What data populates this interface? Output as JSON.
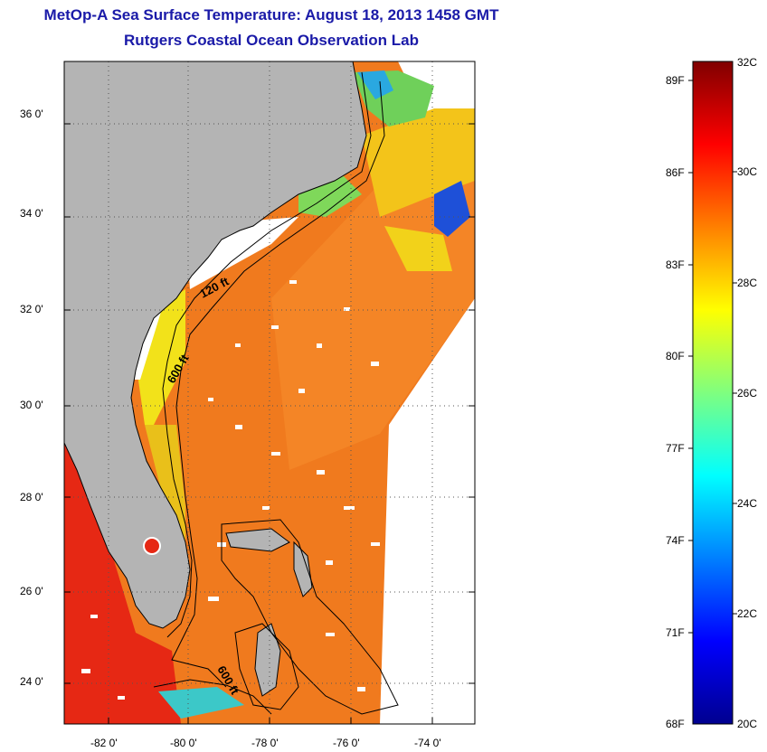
{
  "header": {
    "title": "MetOp-A Sea Surface Temperature:  August 18, 2013 1458 GMT",
    "subtitle": "Rutgers Coastal Ocean Observation Lab"
  },
  "map": {
    "lat_labels": [
      "36 0'",
      "34 0'",
      "32 0'",
      "30 0'",
      "28 0'",
      "26 0'",
      "24 0'"
    ],
    "lon_labels": [
      "-82 0'",
      "-80 0'",
      "-78 0'",
      "-76 0'",
      "-74 0'"
    ],
    "contour_labels": [
      "120 ft",
      "600 ft",
      "600 ft"
    ],
    "colors": {
      "land": "#b4b4b4",
      "ocean_dominant": "#f07a1e",
      "warm_red": "#e62814",
      "coastal_yellow": "#f2e21a",
      "cool_green": "#72d65a",
      "cold_blue": "#1e50d8",
      "cloud_gap": "#ffffff"
    }
  },
  "colorbar": {
    "celsius_labels": [
      "32C",
      "30C",
      "28C",
      "26C",
      "24C",
      "22C",
      "20C"
    ],
    "fahrenheit_labels": [
      "89F",
      "86F",
      "83F",
      "80F",
      "77F",
      "74F",
      "71F",
      "68F"
    ],
    "range_c": [
      20,
      32
    ],
    "colormap": "jet"
  }
}
